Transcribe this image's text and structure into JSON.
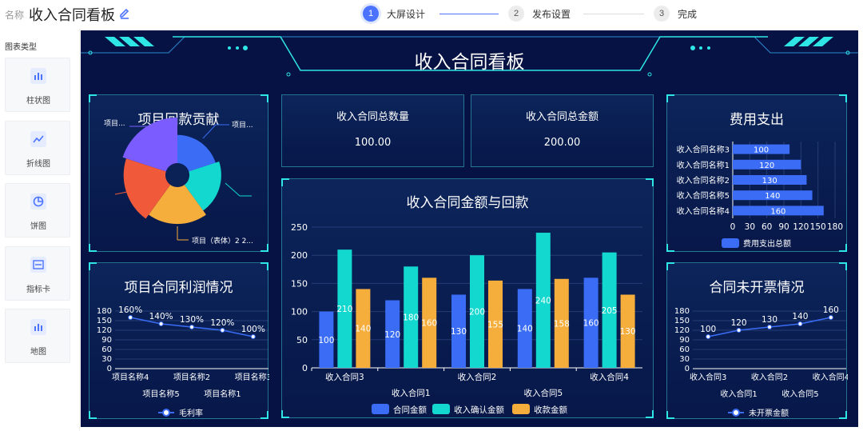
{
  "topbar": {
    "name_label": "名称",
    "board_title": "收入合同看板",
    "steps": [
      {
        "num": "1",
        "label": "大屏设计"
      },
      {
        "num": "2",
        "label": "发布设置"
      },
      {
        "num": "3",
        "label": "完成"
      }
    ]
  },
  "sidebar": {
    "title": "图表类型",
    "items": [
      {
        "label": "柱状图",
        "icon": "bar-chart-icon"
      },
      {
        "label": "折线图",
        "icon": "line-chart-icon"
      },
      {
        "label": "饼图",
        "icon": "pie-chart-icon"
      },
      {
        "label": "指标卡",
        "icon": "indicator-card-icon"
      },
      {
        "label": "地图",
        "icon": "map-icon"
      }
    ]
  },
  "dashboard": {
    "title": "收入合同看板",
    "colors": {
      "background": "#061243",
      "accent": "#2ee6e6",
      "blue": "#3a6cf6",
      "teal": "#12d8cf",
      "orange": "#f5ad3b"
    },
    "kpis": [
      {
        "label": "收入合同总数量",
        "value": "100.00"
      },
      {
        "label": "收入合同总金额",
        "value": "200.00"
      }
    ]
  },
  "chart_data": [
    {
      "id": "pie",
      "type": "pie",
      "title": "项目回款贡献",
      "labels": [
        "项目...",
        "项目...",
        "项目（表体）2 2..."
      ],
      "slices": [
        {
          "color": "#3a6cf6",
          "value": 13
        },
        {
          "color": "#12d8cf",
          "value": 16
        },
        {
          "color": "#f5ad3b",
          "value": 20
        },
        {
          "color": "#f05a3a",
          "value": 24
        },
        {
          "color": "#7b5cff",
          "value": 27
        }
      ]
    },
    {
      "id": "profit",
      "type": "line",
      "title": "项目合同利润情况",
      "categories": [
        "项目名称4",
        "项目名称5",
        "项目名称2",
        "项目名称1",
        "项目名称3"
      ],
      "values": [
        160,
        140,
        130,
        120,
        100
      ],
      "point_labels": [
        "160%",
        "140%",
        "130%",
        "120%",
        "100%"
      ],
      "ylim": [
        0,
        180
      ],
      "yticks": [
        "0",
        "30",
        "60",
        "90",
        "120",
        "150",
        "180"
      ],
      "legend": "毛利率"
    },
    {
      "id": "main",
      "type": "bar",
      "title": "收入合同金额与回款",
      "categories": [
        "收入合同3",
        "收入合同1",
        "收入合同2",
        "收入合同5",
        "收入合同4"
      ],
      "series": [
        {
          "name": "合同金额",
          "color": "#3a6cf6",
          "values": [
            100,
            120,
            130,
            140,
            160
          ]
        },
        {
          "name": "收入确认金额",
          "color": "#12d8cf",
          "values": [
            210,
            180,
            200,
            240,
            205
          ]
        },
        {
          "name": "收款金额",
          "color": "#f5ad3b",
          "values": [
            140,
            160,
            155,
            158,
            130
          ]
        }
      ],
      "ylim": [
        0,
        250
      ],
      "yticks": [
        "0",
        "50",
        "100",
        "150",
        "200",
        "250"
      ]
    },
    {
      "id": "expense",
      "type": "bar",
      "orientation": "horizontal",
      "title": "费用支出",
      "categories": [
        "收入合同名称3",
        "收入合同名称1",
        "收入合同名称2",
        "收入合同名称5",
        "收入合同名称4"
      ],
      "values": [
        100,
        120,
        130,
        140,
        160
      ],
      "xlim": [
        0,
        180
      ],
      "xticks": [
        "0",
        "30",
        "60",
        "90",
        "120",
        "150",
        "180"
      ],
      "legend": "费用支出总额"
    },
    {
      "id": "invoice",
      "type": "line",
      "title": "合同未开票情况",
      "categories": [
        "收入合同3",
        "收入合同1",
        "收入合同2",
        "收入合同5",
        "收入合同4"
      ],
      "values": [
        100,
        120,
        130,
        140,
        160
      ],
      "point_labels": [
        "100",
        "120",
        "130",
        "140",
        "160"
      ],
      "ylim": [
        0,
        180
      ],
      "yticks": [
        "0",
        "30",
        "60",
        "90",
        "120",
        "150",
        "180"
      ],
      "legend": "未开票金额"
    }
  ]
}
